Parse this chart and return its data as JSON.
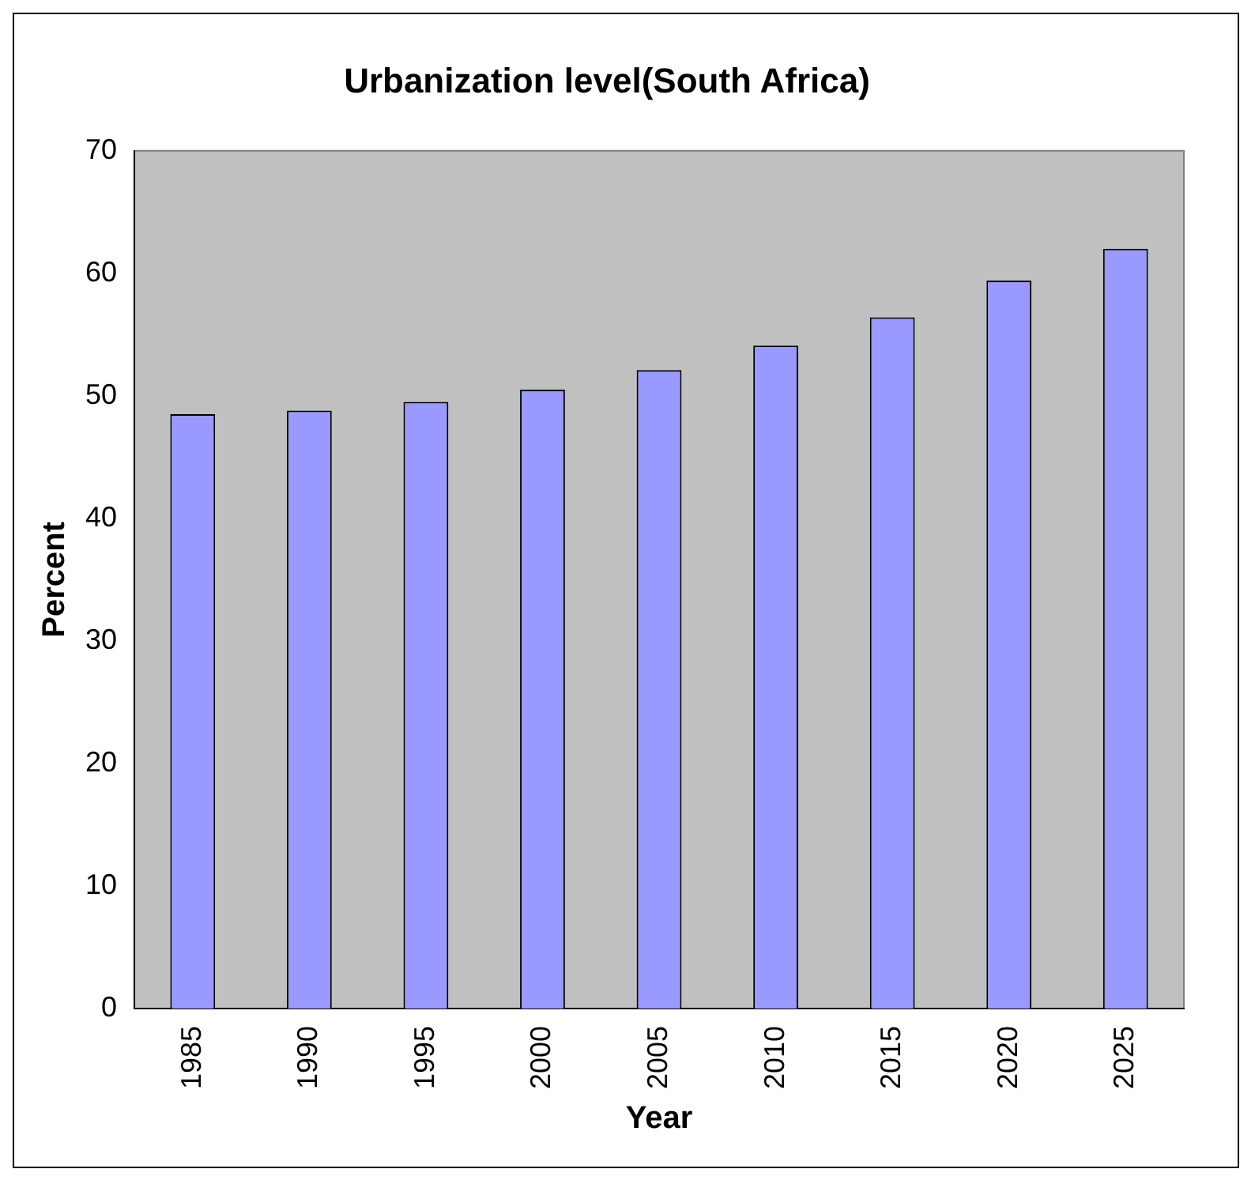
{
  "chart_data": {
    "type": "bar",
    "title": "Urbanization level(South Africa)",
    "xlabel": "Year",
    "ylabel": "Percent",
    "categories": [
      "1985",
      "1990",
      "1995",
      "2000",
      "2005",
      "2010",
      "2015",
      "2020",
      "2025"
    ],
    "values": [
      48.5,
      48.8,
      49.5,
      50.5,
      52.1,
      54.1,
      56.4,
      59.4,
      62.0
    ],
    "color": "#9999ff",
    "ylim": [
      0,
      70
    ],
    "yticks": [
      0,
      10,
      20,
      30,
      40,
      50,
      60,
      70
    ],
    "grid": false,
    "legend": false
  }
}
